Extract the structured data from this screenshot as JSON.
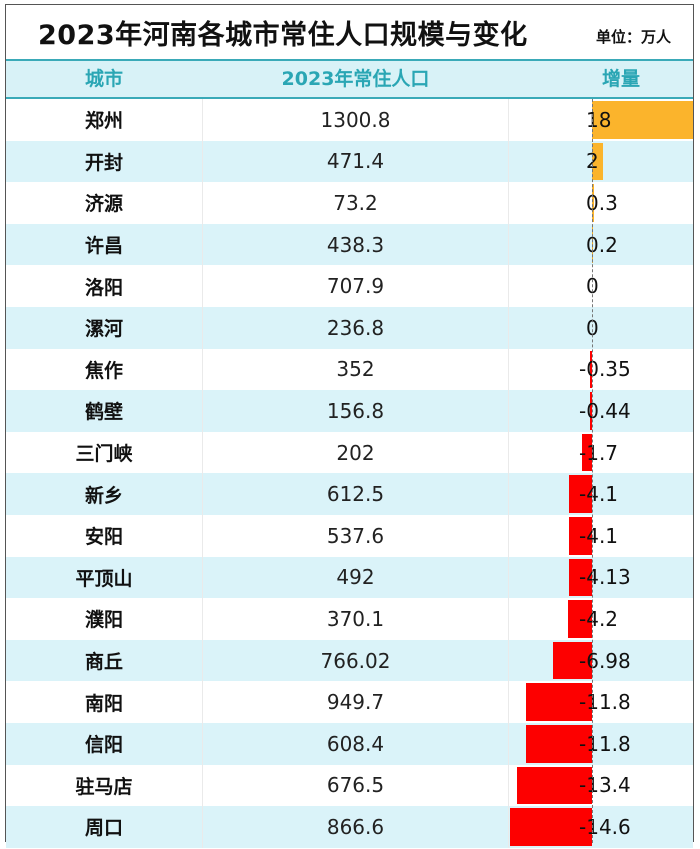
{
  "title": "2023年河南各城市常住人口规模与变化",
  "unit": "单位：万人",
  "headers": [
    "城市",
    "2023年常住人口",
    "增量"
  ],
  "colors": {
    "header_text": "#2aa6b4",
    "header_bg": "#d8f2f7",
    "row_alt_bg": "#daf3f9",
    "positive_bar": "#fbb42c",
    "negative_bar": "#fd0000"
  },
  "rows": [
    {
      "city": "郑州",
      "pop": "1300.8",
      "inc": "18"
    },
    {
      "city": "开封",
      "pop": "471.4",
      "inc": "2"
    },
    {
      "city": "济源",
      "pop": "73.2",
      "inc": "0.3"
    },
    {
      "city": "许昌",
      "pop": "438.3",
      "inc": "0.2"
    },
    {
      "city": "洛阳",
      "pop": "707.9",
      "inc": "0"
    },
    {
      "city": "漯河",
      "pop": "236.8",
      "inc": "0"
    },
    {
      "city": "焦作",
      "pop": "352",
      "inc": "-0.35"
    },
    {
      "city": "鹤壁",
      "pop": "156.8",
      "inc": "-0.44"
    },
    {
      "city": "三门峡",
      "pop": "202",
      "inc": "-1.7"
    },
    {
      "city": "新乡",
      "pop": "612.5",
      "inc": "-4.1"
    },
    {
      "city": "安阳",
      "pop": "537.6",
      "inc": "-4.1"
    },
    {
      "city": "平顶山",
      "pop": "492",
      "inc": "-4.13"
    },
    {
      "city": "濮阳",
      "pop": "370.1",
      "inc": "-4.2"
    },
    {
      "city": "商丘",
      "pop": "766.02",
      "inc": "-6.98"
    },
    {
      "city": "南阳",
      "pop": "949.7",
      "inc": "-11.8"
    },
    {
      "city": "信阳",
      "pop": "608.4",
      "inc": "-11.8"
    },
    {
      "city": "驻马店",
      "pop": "676.5",
      "inc": "-13.4"
    },
    {
      "city": "周口",
      "pop": "866.6",
      "inc": "-14.6"
    }
  ],
  "chart_data": {
    "type": "table",
    "title": "2023年河南各城市常住人口规模与变化",
    "subtitle": "单位：万人",
    "columns": [
      "城市",
      "2023年常住人口",
      "增量"
    ],
    "categories": [
      "郑州",
      "开封",
      "济源",
      "许昌",
      "洛阳",
      "漯河",
      "焦作",
      "鹤壁",
      "三门峡",
      "新乡",
      "安阳",
      "平顶山",
      "濮阳",
      "商丘",
      "南阳",
      "信阳",
      "驻马店",
      "周口"
    ],
    "series": [
      {
        "name": "2023年常住人口",
        "values": [
          1300.8,
          471.4,
          73.2,
          438.3,
          707.9,
          236.8,
          352,
          156.8,
          202,
          612.5,
          537.6,
          492,
          370.1,
          766.02,
          949.7,
          608.4,
          676.5,
          866.6
        ]
      },
      {
        "name": "增量",
        "type": "bar",
        "values": [
          18,
          2,
          0.3,
          0.2,
          0,
          0,
          -0.35,
          -0.44,
          -1.7,
          -4.1,
          -4.1,
          -4.13,
          -4.2,
          -6.98,
          -11.8,
          -11.8,
          -13.4,
          -14.6
        ]
      }
    ],
    "bar_colors": {
      "positive": "#fbb42c",
      "negative": "#fd0000"
    }
  }
}
